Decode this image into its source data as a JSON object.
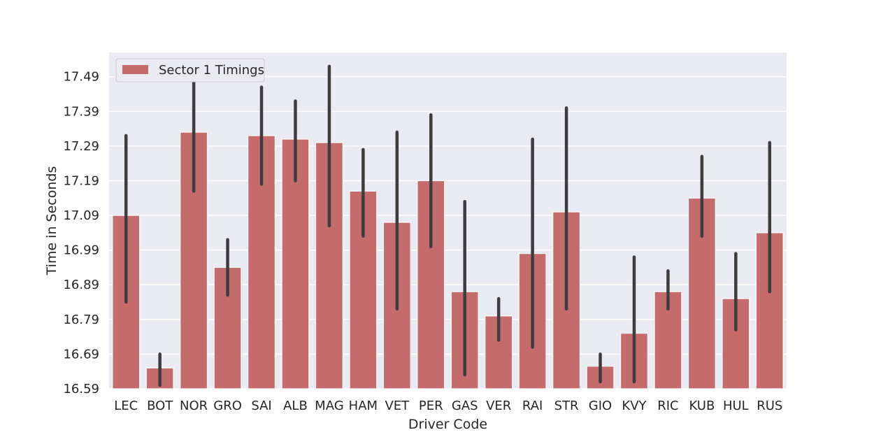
{
  "chart_data": {
    "type": "bar",
    "categories": [
      "LEC",
      "BOT",
      "NOR",
      "GRO",
      "SAI",
      "ALB",
      "MAG",
      "HAM",
      "VET",
      "PER",
      "GAS",
      "VER",
      "RAI",
      "STR",
      "GIO",
      "KVY",
      "RIC",
      "KUB",
      "HUL",
      "RUS"
    ],
    "series": [
      {
        "name": "Sector 1 Timings",
        "values": [
          17.09,
          16.65,
          17.33,
          16.94,
          17.32,
          17.31,
          17.3,
          17.16,
          17.07,
          17.19,
          16.87,
          16.8,
          16.98,
          17.1,
          16.655,
          16.75,
          16.87,
          17.14,
          16.85,
          17.04
        ],
        "ci_low": [
          16.84,
          16.6,
          17.16,
          16.86,
          17.18,
          17.19,
          17.06,
          17.03,
          16.82,
          17.0,
          16.63,
          16.73,
          16.71,
          16.82,
          16.61,
          16.61,
          16.82,
          17.03,
          16.76,
          16.87
        ],
        "ci_high": [
          17.32,
          16.69,
          17.5,
          17.02,
          17.46,
          17.42,
          17.52,
          17.28,
          17.33,
          17.38,
          17.13,
          16.85,
          17.31,
          17.4,
          16.69,
          16.97,
          16.93,
          17.26,
          16.98,
          17.3
        ]
      }
    ],
    "color": "#c66b6b",
    "errorbar_color": "#3d3d3d",
    "xlabel": "Driver Code",
    "ylabel": "Time in Seconds",
    "y_ticks": [
      "16.59",
      "16.69",
      "16.79",
      "16.89",
      "16.99",
      "17.09",
      "17.19",
      "17.29",
      "17.39",
      "17.49"
    ],
    "ylim": [
      16.59,
      17.56
    ],
    "grid": true,
    "background": "#eaeaf2",
    "legend": {
      "position": "upper-left",
      "label": "Sector 1 Timings"
    }
  }
}
